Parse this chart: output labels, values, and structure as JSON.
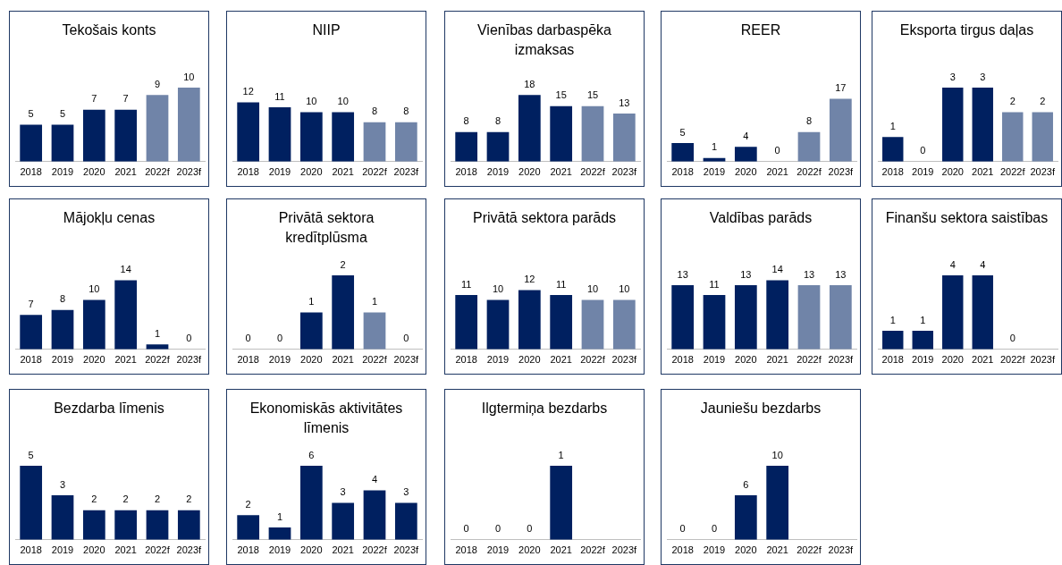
{
  "chart_data": [
    {
      "type": "bar",
      "title": "Tekošais konts",
      "categories": [
        "2018",
        "2019",
        "2020",
        "2021",
        "2022f",
        "2023f"
      ],
      "values": [
        5,
        5,
        7,
        7,
        9,
        10
      ],
      "colors": [
        "#002060",
        "#002060",
        "#002060",
        "#002060",
        "#7084a8",
        "#7084a8"
      ],
      "data_labels": true,
      "grid": false,
      "legend": false,
      "tick_labels": "x"
    },
    {
      "type": "bar",
      "title": "NIIP",
      "categories": [
        "2018",
        "2019",
        "2020",
        "2021",
        "2022f",
        "2023f"
      ],
      "values": [
        12,
        11,
        10,
        10,
        8,
        8
      ],
      "colors": [
        "#002060",
        "#002060",
        "#002060",
        "#002060",
        "#7084a8",
        "#7084a8"
      ],
      "data_labels": true,
      "grid": false,
      "legend": false,
      "tick_labels": "x"
    },
    {
      "type": "bar",
      "title": "Vienības darbaspēka izmaksas",
      "categories": [
        "2018",
        "2019",
        "2020",
        "2021",
        "2022f",
        "2023f"
      ],
      "values": [
        8,
        8,
        18,
        15,
        15,
        13
      ],
      "colors": [
        "#002060",
        "#002060",
        "#002060",
        "#002060",
        "#7084a8",
        "#7084a8"
      ],
      "data_labels": true,
      "grid": false,
      "legend": false,
      "tick_labels": "x"
    },
    {
      "type": "bar",
      "title": "REER",
      "categories": [
        "2018",
        "2019",
        "2020",
        "2021",
        "2022f",
        "2023f"
      ],
      "values": [
        5,
        1,
        4,
        0,
        8,
        17
      ],
      "colors": [
        "#002060",
        "#002060",
        "#002060",
        "#002060",
        "#7084a8",
        "#7084a8"
      ],
      "data_labels": true,
      "grid": false,
      "legend": false,
      "tick_labels": "x"
    },
    {
      "type": "bar",
      "title": "Eksporta tirgus daļas",
      "categories": [
        "2018",
        "2019",
        "2020",
        "2021",
        "2022f",
        "2023f"
      ],
      "values": [
        1,
        0,
        3,
        3,
        2,
        2
      ],
      "colors": [
        "#002060",
        "#002060",
        "#002060",
        "#002060",
        "#7084a8",
        "#7084a8"
      ],
      "data_labels": true,
      "grid": false,
      "legend": false,
      "tick_labels": "x"
    },
    {
      "type": "bar",
      "title": "Mājokļu cenas",
      "categories": [
        "2018",
        "2019",
        "2020",
        "2021",
        "2022f",
        "2023f"
      ],
      "values": [
        7,
        8,
        10,
        14,
        1,
        0
      ],
      "colors": [
        "#002060",
        "#002060",
        "#002060",
        "#002060",
        "#002060",
        "#002060"
      ],
      "data_labels": true,
      "grid": false,
      "legend": false,
      "tick_labels": "x"
    },
    {
      "type": "bar",
      "title": "Privātā sektora kredītplūsma",
      "categories": [
        "2018",
        "2019",
        "2020",
        "2021",
        "2022f",
        "2023f"
      ],
      "values": [
        0,
        0,
        1,
        2,
        1,
        0
      ],
      "colors": [
        "#002060",
        "#002060",
        "#002060",
        "#002060",
        "#7084a8",
        "#7084a8"
      ],
      "data_labels": true,
      "grid": false,
      "legend": false,
      "tick_labels": "x"
    },
    {
      "type": "bar",
      "title": "Privātā sektora parāds",
      "categories": [
        "2018",
        "2019",
        "2020",
        "2021",
        "2022f",
        "2023f"
      ],
      "values": [
        11,
        10,
        12,
        11,
        10,
        10
      ],
      "colors": [
        "#002060",
        "#002060",
        "#002060",
        "#002060",
        "#7084a8",
        "#7084a8"
      ],
      "data_labels": true,
      "grid": false,
      "legend": false,
      "tick_labels": "x"
    },
    {
      "type": "bar",
      "title": "Valdības parāds",
      "categories": [
        "2018",
        "2019",
        "2020",
        "2021",
        "2022f",
        "2023f"
      ],
      "values": [
        13,
        11,
        13,
        14,
        13,
        13
      ],
      "colors": [
        "#002060",
        "#002060",
        "#002060",
        "#002060",
        "#7084a8",
        "#7084a8"
      ],
      "data_labels": true,
      "grid": false,
      "legend": false,
      "tick_labels": "x"
    },
    {
      "type": "bar",
      "title": "Finanšu sektora saistības",
      "categories": [
        "2018",
        "2019",
        "2020",
        "2021",
        "2022f",
        "2023f"
      ],
      "values": [
        1,
        1,
        4,
        4,
        0,
        null
      ],
      "colors": [
        "#002060",
        "#002060",
        "#002060",
        "#002060",
        "#002060",
        "#002060"
      ],
      "data_labels": true,
      "grid": false,
      "legend": false,
      "tick_labels": "x"
    },
    {
      "type": "bar",
      "title": "Bezdarba līmenis",
      "categories": [
        "2018",
        "2019",
        "2020",
        "2021",
        "2022f",
        "2023f"
      ],
      "values": [
        5,
        3,
        2,
        2,
        2,
        2
      ],
      "colors": [
        "#002060",
        "#002060",
        "#002060",
        "#002060",
        "#002060",
        "#002060"
      ],
      "data_labels": true,
      "grid": false,
      "legend": false,
      "tick_labels": "x"
    },
    {
      "type": "bar",
      "title": "Ekonomiskās aktivitātes līmenis",
      "categories": [
        "2018",
        "2019",
        "2020",
        "2021",
        "2022f",
        "2023f"
      ],
      "values": [
        2,
        1,
        6,
        3,
        4,
        3
      ],
      "colors": [
        "#002060",
        "#002060",
        "#002060",
        "#002060",
        "#002060",
        "#002060"
      ],
      "data_labels": true,
      "grid": false,
      "legend": false,
      "tick_labels": "x"
    },
    {
      "type": "bar",
      "title": "Ilgtermiņa bezdarbs",
      "categories": [
        "2018",
        "2019",
        "2020",
        "2021",
        "2022f",
        "2023f"
      ],
      "values": [
        0,
        0,
        0,
        1,
        null,
        null
      ],
      "colors": [
        "#002060",
        "#002060",
        "#002060",
        "#002060",
        "#002060",
        "#002060"
      ],
      "data_labels": true,
      "grid": false,
      "legend": false,
      "tick_labels": "x"
    },
    {
      "type": "bar",
      "title": "Jauniešu bezdarbs",
      "categories": [
        "2018",
        "2019",
        "2020",
        "2021",
        "2022f",
        "2023f"
      ],
      "values": [
        0,
        0,
        6,
        10,
        null,
        null
      ],
      "colors": [
        "#002060",
        "#002060",
        "#002060",
        "#002060",
        "#002060",
        "#002060"
      ],
      "data_labels": true,
      "grid": false,
      "legend": false,
      "tick_labels": "x"
    }
  ]
}
